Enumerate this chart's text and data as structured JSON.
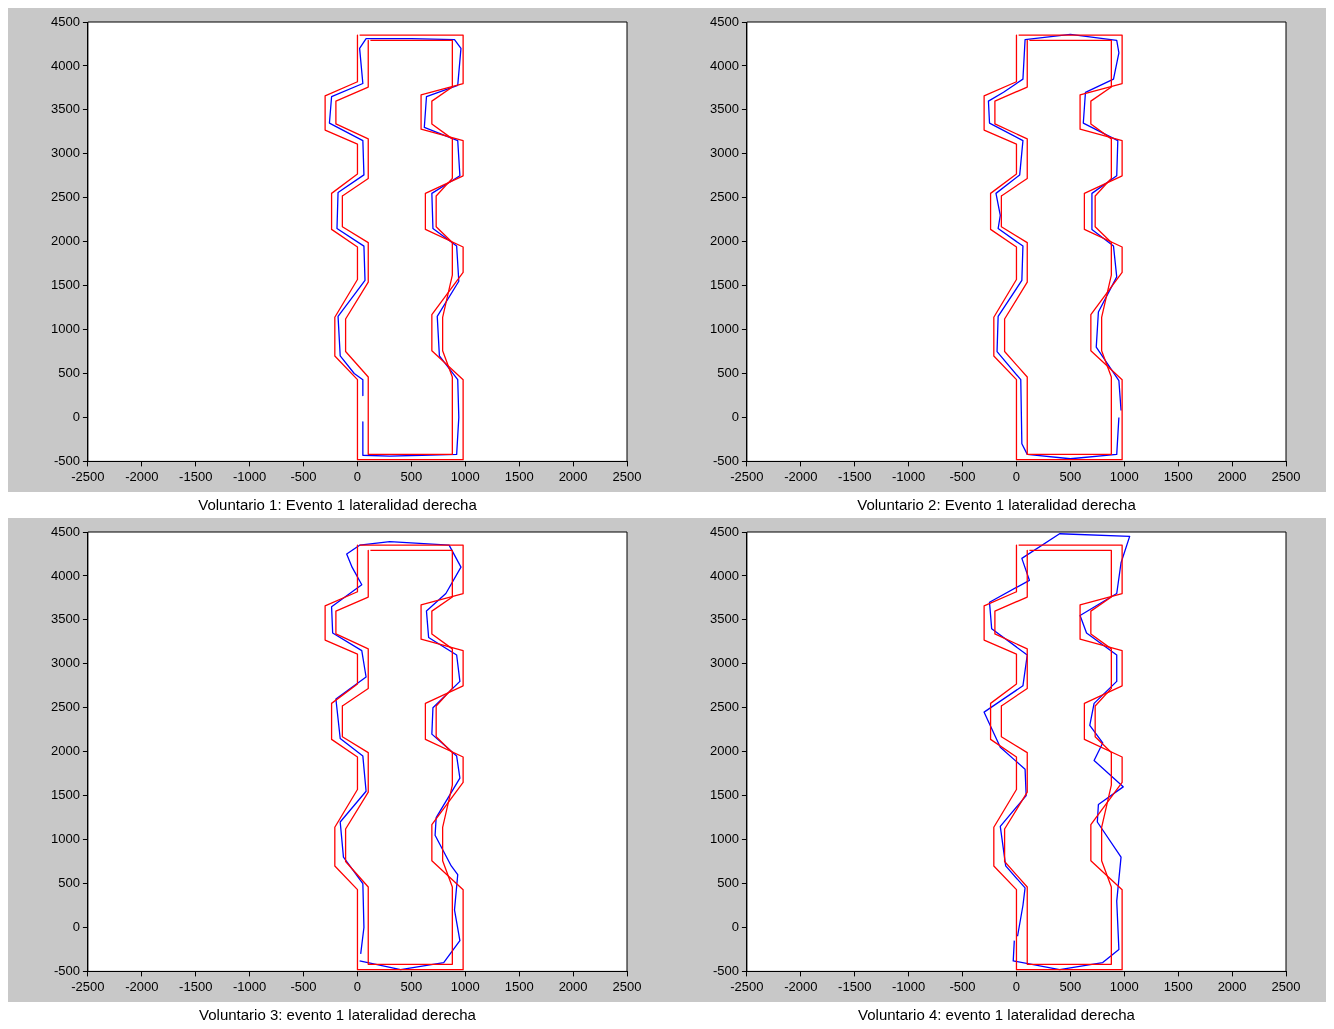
{
  "chart_data": [
    {
      "type": "line",
      "annotations": [
        "Voluntario 1: Evento 1 lateralidad derecha"
      ],
      "xlim": [
        -2500,
        2500
      ],
      "ylim": [
        -500,
        4500
      ],
      "xticks": [
        -2500,
        -2000,
        -1500,
        -1000,
        -500,
        0,
        500,
        1000,
        1500,
        2000,
        2500
      ],
      "yticks": [
        -500,
        0,
        500,
        1000,
        1500,
        2000,
        2500,
        3000,
        3500,
        4000,
        4500
      ],
      "series": [
        {
          "color": "#ff0000",
          "x": [
            0,
            0,
            -300,
            -300,
            0,
            0,
            -240,
            -240,
            0,
            0,
            -210,
            -210,
            0,
            0,
            980,
            980,
            690,
            690,
            980,
            980,
            630,
            630,
            980,
            980,
            590,
            590,
            980,
            980,
            20
          ],
          "values": [
            4350,
            3820,
            3660,
            3270,
            3110,
            2770,
            2550,
            2140,
            1940,
            1570,
            1140,
            700,
            430,
            -480,
            -480,
            430,
            760,
            1170,
            1650,
            1940,
            2140,
            2550,
            2750,
            3150,
            3280,
            3670,
            3800,
            4350,
            4350
          ]
        },
        {
          "color": "#ff0000",
          "x": [
            100,
            100,
            -200,
            -200,
            100,
            100,
            -140,
            -140,
            100,
            100,
            -110,
            -110,
            100,
            100,
            880,
            880,
            790,
            790,
            880,
            880,
            730,
            730,
            880,
            880,
            690,
            690,
            880,
            880,
            120
          ],
          "values": [
            4290,
            3760,
            3600,
            3340,
            3170,
            2720,
            2520,
            2170,
            1990,
            1540,
            1120,
            750,
            460,
            -420,
            -420,
            460,
            760,
            1140,
            1620,
            1990,
            2170,
            2520,
            2720,
            3170,
            3340,
            3600,
            3760,
            4290,
            4290
          ]
        },
        {
          "color": "#0000ff",
          "x": [
            50,
            50,
            300,
            600,
            920,
            940,
            930,
            760,
            740,
            940,
            920,
            700,
            690,
            950,
            930,
            620,
            640,
            930,
            960,
            900,
            500,
            80,
            20,
            50,
            -240,
            -260,
            50,
            60,
            -180,
            -190,
            60,
            70,
            -180,
            -160,
            -30,
            50,
            50
          ],
          "values": [
            -50,
            -430,
            -440,
            -430,
            -420,
            0,
            430,
            700,
            1150,
            1550,
            1950,
            2150,
            2550,
            2750,
            3150,
            3300,
            3650,
            3780,
            4200,
            4300,
            4310,
            4310,
            4200,
            3800,
            3650,
            3350,
            3150,
            2760,
            2560,
            2150,
            1950,
            1560,
            1150,
            700,
            500,
            430,
            250
          ]
        }
      ]
    },
    {
      "type": "line",
      "annotations": [
        "Voluntario 2: Evento 1 lateralidad derecha"
      ],
      "xlim": [
        -2500,
        2500
      ],
      "ylim": [
        -500,
        4500
      ],
      "xticks": [
        -2500,
        -2000,
        -1500,
        -1000,
        -500,
        0,
        500,
        1000,
        1500,
        2000,
        2500
      ],
      "yticks": [
        -500,
        0,
        500,
        1000,
        1500,
        2000,
        2500,
        3000,
        3500,
        4000,
        4500
      ],
      "series": [
        {
          "color": "#ff0000",
          "x": [
            0,
            0,
            -300,
            -300,
            0,
            0,
            -240,
            -240,
            0,
            0,
            -210,
            -210,
            0,
            0,
            980,
            980,
            690,
            690,
            980,
            980,
            630,
            630,
            980,
            980,
            590,
            590,
            980,
            980,
            20
          ],
          "values": [
            4350,
            3820,
            3660,
            3270,
            3110,
            2770,
            2550,
            2140,
            1940,
            1570,
            1140,
            700,
            430,
            -480,
            -480,
            430,
            760,
            1170,
            1650,
            1940,
            2140,
            2550,
            2750,
            3150,
            3280,
            3670,
            3800,
            4350,
            4350
          ]
        },
        {
          "color": "#ff0000",
          "x": [
            100,
            100,
            -200,
            -200,
            100,
            100,
            -140,
            -140,
            100,
            100,
            -110,
            -110,
            100,
            100,
            880,
            880,
            790,
            790,
            880,
            880,
            730,
            730,
            880,
            880,
            690,
            690,
            880,
            880,
            120
          ],
          "values": [
            4290,
            3760,
            3600,
            3340,
            3170,
            2720,
            2520,
            2170,
            1990,
            1540,
            1120,
            750,
            460,
            -420,
            -420,
            460,
            760,
            1140,
            1620,
            1990,
            2170,
            2520,
            2720,
            3170,
            3340,
            3600,
            3760,
            4290,
            4290
          ]
        },
        {
          "color": "#0000ff",
          "x": [
            950,
            930,
            500,
            100,
            50,
            40,
            -180,
            -170,
            50,
            60,
            -170,
            -150,
            -190,
            30,
            60,
            -250,
            -260,
            -120,
            60,
            80,
            500,
            930,
            950,
            900,
            640,
            620,
            940,
            930,
            700,
            700,
            900,
            930,
            760,
            740,
            950,
            970
          ],
          "values": [
            0,
            -420,
            -470,
            -420,
            -300,
            430,
            750,
            1150,
            1560,
            1950,
            2150,
            2300,
            2550,
            2760,
            3150,
            3350,
            3600,
            3700,
            3850,
            4300,
            4360,
            4290,
            4150,
            3850,
            3700,
            3350,
            3150,
            2750,
            2550,
            2140,
            1950,
            1600,
            1200,
            800,
            420,
            80
          ]
        }
      ]
    },
    {
      "type": "line",
      "annotations": [
        "Voluntario 3: evento 1 lateralidad derecha"
      ],
      "xlim": [
        -2500,
        2500
      ],
      "ylim": [
        -500,
        4500
      ],
      "xticks": [
        -2500,
        -2000,
        -1500,
        -1000,
        -500,
        0,
        500,
        1000,
        1500,
        2000,
        2500
      ],
      "yticks": [
        -500,
        0,
        500,
        1000,
        1500,
        2000,
        2500,
        3000,
        3500,
        4000,
        4500
      ],
      "series": [
        {
          "color": "#ff0000",
          "x": [
            0,
            0,
            -300,
            -300,
            0,
            0,
            -240,
            -240,
            0,
            0,
            -210,
            -210,
            0,
            0,
            980,
            980,
            690,
            690,
            980,
            980,
            630,
            630,
            980,
            980,
            590,
            590,
            980,
            980,
            20
          ],
          "values": [
            4350,
            3820,
            3660,
            3270,
            3110,
            2770,
            2550,
            2140,
            1940,
            1570,
            1140,
            700,
            430,
            -480,
            -480,
            430,
            760,
            1170,
            1650,
            1940,
            2140,
            2550,
            2750,
            3150,
            3280,
            3670,
            3800,
            4350,
            4350
          ]
        },
        {
          "color": "#ff0000",
          "x": [
            100,
            100,
            -200,
            -200,
            100,
            100,
            -140,
            -140,
            100,
            100,
            -110,
            -110,
            100,
            100,
            880,
            880,
            790,
            790,
            880,
            880,
            730,
            730,
            880,
            880,
            690,
            690,
            880,
            880,
            120
          ],
          "values": [
            4290,
            3760,
            3600,
            3340,
            3170,
            2720,
            2520,
            2170,
            1990,
            1540,
            1120,
            750,
            460,
            -420,
            -420,
            460,
            760,
            1140,
            1620,
            1990,
            2170,
            2520,
            2720,
            3170,
            3340,
            3600,
            3760,
            4290,
            4290
          ]
        },
        {
          "color": "#0000ff",
          "x": [
            20,
            400,
            800,
            950,
            900,
            930,
            870,
            720,
            730,
            950,
            920,
            690,
            700,
            950,
            920,
            660,
            640,
            820,
            960,
            850,
            300,
            20,
            -100,
            -50,
            40,
            -240,
            -230,
            40,
            80,
            -200,
            -160,
            50,
            80,
            -160,
            -130,
            50,
            60,
            30
          ],
          "values": [
            -380,
            -480,
            -400,
            -150,
            200,
            600,
            700,
            1050,
            1250,
            1700,
            1950,
            2200,
            2500,
            2800,
            3100,
            3300,
            3600,
            3800,
            4100,
            4350,
            4390,
            4350,
            4250,
            4100,
            3900,
            3650,
            3350,
            3150,
            2850,
            2600,
            2150,
            1950,
            1550,
            1200,
            800,
            500,
            0,
            -300
          ]
        }
      ]
    },
    {
      "type": "line",
      "annotations": [
        "Voluntario 4: evento 1 lateralidad derecha"
      ],
      "xlim": [
        -2500,
        2500
      ],
      "ylim": [
        -500,
        4500
      ],
      "xticks": [
        -2500,
        -2000,
        -1500,
        -1000,
        -500,
        0,
        500,
        1000,
        1500,
        2000,
        2500
      ],
      "yticks": [
        -500,
        0,
        500,
        1000,
        1500,
        2000,
        2500,
        3000,
        3500,
        4000,
        4500
      ],
      "series": [
        {
          "color": "#ff0000",
          "x": [
            0,
            0,
            -300,
            -300,
            0,
            0,
            -240,
            -240,
            0,
            0,
            -210,
            -210,
            0,
            0,
            980,
            980,
            690,
            690,
            980,
            980,
            630,
            630,
            980,
            980,
            590,
            590,
            980,
            980,
            20
          ],
          "values": [
            4350,
            3820,
            3660,
            3270,
            3110,
            2770,
            2550,
            2140,
            1940,
            1570,
            1140,
            700,
            430,
            -480,
            -480,
            430,
            760,
            1170,
            1650,
            1940,
            2140,
            2550,
            2750,
            3150,
            3280,
            3670,
            3800,
            4350,
            4350
          ]
        },
        {
          "color": "#ff0000",
          "x": [
            100,
            100,
            -200,
            -200,
            100,
            100,
            -140,
            -140,
            100,
            100,
            -110,
            -110,
            100,
            100,
            880,
            880,
            790,
            790,
            880,
            880,
            730,
            730,
            880,
            880,
            690,
            690,
            880,
            880,
            120
          ],
          "values": [
            4290,
            3760,
            3600,
            3340,
            3170,
            2720,
            2520,
            2170,
            1990,
            1540,
            1120,
            750,
            460,
            -420,
            -420,
            460,
            760,
            1140,
            1620,
            1990,
            2170,
            2520,
            2720,
            3170,
            3340,
            3600,
            3760,
            4290,
            4290
          ]
        },
        {
          "color": "#0000ff",
          "x": [
            -20,
            -30,
            400,
            800,
            950,
            930,
            970,
            750,
            760,
            990,
            720,
            800,
            680,
            720,
            930,
            930,
            650,
            590,
            930,
            970,
            1050,
            400,
            50,
            120,
            -250,
            -230,
            100,
            60,
            -300,
            -150,
            80,
            90,
            -150,
            -100,
            80,
            60,
            10
          ],
          "values": [
            -150,
            -380,
            -480,
            -400,
            -250,
            300,
            800,
            1200,
            1400,
            1600,
            1900,
            2100,
            2300,
            2550,
            2800,
            3100,
            3350,
            3550,
            3800,
            4150,
            4450,
            4480,
            4200,
            3950,
            3700,
            3400,
            3100,
            2750,
            2450,
            2050,
            1800,
            1500,
            1150,
            700,
            450,
            250,
            -100
          ]
        }
      ]
    }
  ]
}
